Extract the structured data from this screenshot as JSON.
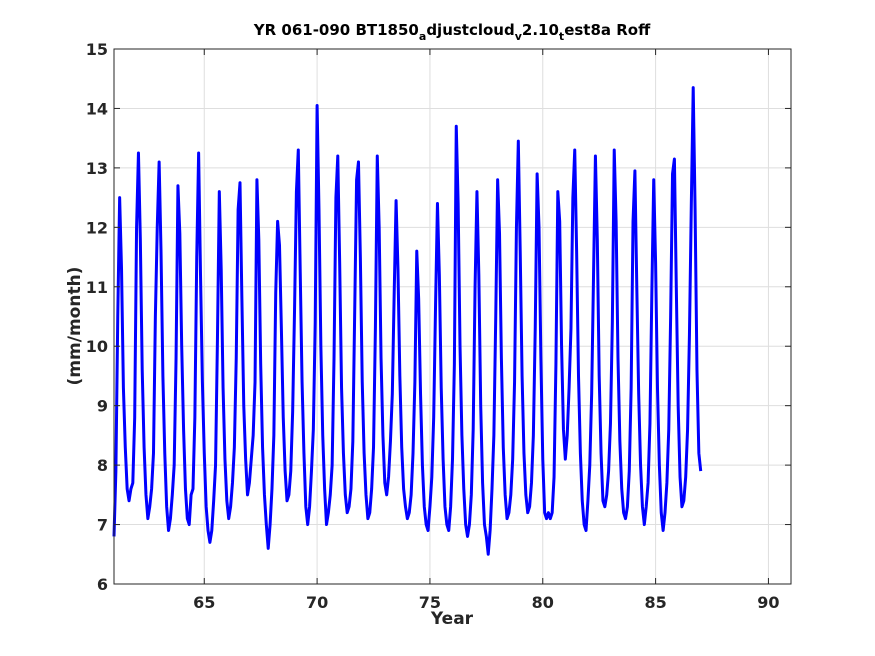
{
  "chart_data": {
    "type": "line",
    "title": {
      "parts": [
        {
          "text": "YR 061-090 BT1850",
          "sub": false
        },
        {
          "text": "a",
          "sub": true
        },
        {
          "text": "djustcloud",
          "sub": false
        },
        {
          "text": "v",
          "sub": true
        },
        {
          "text": "2.10",
          "sub": false
        },
        {
          "text": "t",
          "sub": true
        },
        {
          "text": "est8a Roff",
          "sub": false
        }
      ]
    },
    "xlabel": "Year",
    "ylabel": "(mm/month)",
    "xlim": [
      61,
      91
    ],
    "ylim": [
      6,
      15
    ],
    "xticks": [
      65,
      70,
      75,
      80,
      85,
      90
    ],
    "yticks": [
      6,
      7,
      8,
      9,
      10,
      11,
      12,
      13,
      14,
      15
    ],
    "grid": true,
    "series": [
      {
        "color": "#0000ff",
        "x_start": 61.0,
        "x_step": 0.0833333,
        "values": [
          6.8,
          7.9,
          10.5,
          12.5,
          11.3,
          9.3,
          8.3,
          7.6,
          7.4,
          7.6,
          7.7,
          8.8,
          12.0,
          13.25,
          11.8,
          9.6,
          8.3,
          7.5,
          7.1,
          7.3,
          7.6,
          8.2,
          10.5,
          12.0,
          13.1,
          11.6,
          9.5,
          8.2,
          7.3,
          6.9,
          7.1,
          7.5,
          8.0,
          9.8,
          12.7,
          11.9,
          10.0,
          8.6,
          7.6,
          7.1,
          7.0,
          7.5,
          7.6,
          8.8,
          11.5,
          13.25,
          11.2,
          9.4,
          8.2,
          7.3,
          6.9,
          6.7,
          6.9,
          7.4,
          8.0,
          10.1,
          12.6,
          11.3,
          9.3,
          8.1,
          7.4,
          7.1,
          7.3,
          7.7,
          8.3,
          9.8,
          12.3,
          12.75,
          10.8,
          9.0,
          8.1,
          7.5,
          7.7,
          8.1,
          8.5,
          9.4,
          12.8,
          11.8,
          9.7,
          8.3,
          7.5,
          7.0,
          6.6,
          7.0,
          7.6,
          8.5,
          10.9,
          12.1,
          11.7,
          10.3,
          8.8,
          7.9,
          7.4,
          7.5,
          7.9,
          8.9,
          10.6,
          12.6,
          13.3,
          11.3,
          9.4,
          8.2,
          7.3,
          7.0,
          7.3,
          7.9,
          8.6,
          10.4,
          14.05,
          12.3,
          10.0,
          8.5,
          7.6,
          7.0,
          7.2,
          7.5,
          8.0,
          9.8,
          12.5,
          13.2,
          11.4,
          9.3,
          8.2,
          7.5,
          7.2,
          7.3,
          7.6,
          8.4,
          10.6,
          12.8,
          13.1,
          11.5,
          9.4,
          8.2,
          7.5,
          7.1,
          7.2,
          7.6,
          8.3,
          10.3,
          13.2,
          12.0,
          9.8,
          8.5,
          7.7,
          7.5,
          7.8,
          8.4,
          9.2,
          10.9,
          12.45,
          11.3,
          9.5,
          8.3,
          7.6,
          7.3,
          7.1,
          7.2,
          7.5,
          8.2,
          9.4,
          11.6,
          10.8,
          9.2,
          8.0,
          7.3,
          7.0,
          6.9,
          7.3,
          7.8,
          8.8,
          10.7,
          12.4,
          11.2,
          9.3,
          8.1,
          7.3,
          7.0,
          6.9,
          7.3,
          8.1,
          9.7,
          13.7,
          12.4,
          10.0,
          8.5,
          7.6,
          7.0,
          6.8,
          7.0,
          7.5,
          8.6,
          11.0,
          12.6,
          11.2,
          9.0,
          7.7,
          7.0,
          6.8,
          6.5,
          6.9,
          7.6,
          8.5,
          10.5,
          12.8,
          11.9,
          9.8,
          8.3,
          7.5,
          7.1,
          7.2,
          7.5,
          8.1,
          9.4,
          12.0,
          13.45,
          11.6,
          9.5,
          8.2,
          7.5,
          7.2,
          7.3,
          7.7,
          8.5,
          10.3,
          12.9,
          12.0,
          9.8,
          8.1,
          7.2,
          7.1,
          7.2,
          7.1,
          7.2,
          7.8,
          9.7,
          12.6,
          12.1,
          10.0,
          8.6,
          8.1,
          8.5,
          9.3,
          10.3,
          12.5,
          13.3,
          11.6,
          9.5,
          8.2,
          7.4,
          7.0,
          6.9,
          7.4,
          8.0,
          9.2,
          11.2,
          13.2,
          11.8,
          9.5,
          8.2,
          7.4,
          7.3,
          7.5,
          7.9,
          8.7,
          10.4,
          13.3,
          12.1,
          9.8,
          8.4,
          7.6,
          7.2,
          7.1,
          7.3,
          7.9,
          9.3,
          12.1,
          12.95,
          11.0,
          9.2,
          8.0,
          7.3,
          7.0,
          7.3,
          7.7,
          8.7,
          10.9,
          12.8,
          11.4,
          9.3,
          8.0,
          7.2,
          6.9,
          7.2,
          7.7,
          8.6,
          10.5,
          12.9,
          13.15,
          11.0,
          9.0,
          7.8,
          7.3,
          7.4,
          7.8,
          8.6,
          10.2,
          12.4,
          14.35,
          12.3,
          9.6,
          8.2,
          7.9
        ]
      }
    ]
  }
}
